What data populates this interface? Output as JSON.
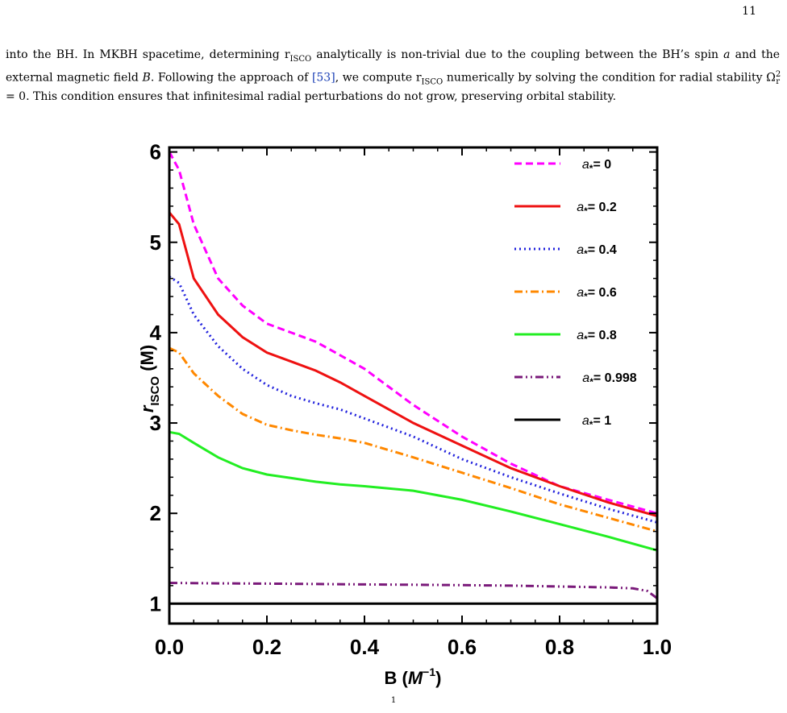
{
  "page_number": "11",
  "paragraph": [
    "into the BH. In MKBH spacetime, determining r",
    "ISCO",
    " analytically is non-trivial due to the coupling between the BH’s spin ",
    "a",
    " and the external magnetic field ",
    "B",
    ". Following the approach of ",
    "[53]",
    ", we compute r",
    "ISCO",
    " numerically by solving the condition for radial stability Ω",
    "2",
    "r",
    " = 0. This condition ensures that infinitesimal radial perturbations do not grow, preserving orbital stability."
  ],
  "caption_fragment": "1",
  "chart_data": {
    "type": "line",
    "xlabel_main": "B (",
    "xlabel_unit": "M",
    "xlabel_exp": "−1",
    "xlabel_close": ")",
    "ylabel_main": "r",
    "ylabel_sub": "ISCO",
    "ylabel_unit": " (M)",
    "xlim": [
      0,
      1
    ],
    "ylim": [
      0.78,
      6.05
    ],
    "xticks": [
      "0.0",
      "0.2",
      "0.4",
      "0.6",
      "0.8",
      "1.0"
    ],
    "yticks": [
      "1",
      "2",
      "3",
      "4",
      "5",
      "6"
    ],
    "legend_position": "top-right",
    "legend_symbol": "a",
    "legend_sub": "*",
    "series": [
      {
        "name": "0",
        "color": "#ff00ff",
        "dash": "dashed",
        "x": [
          0,
          0.02,
          0.05,
          0.1,
          0.15,
          0.2,
          0.25,
          0.3,
          0.35,
          0.4,
          0.5,
          0.6,
          0.7,
          0.8,
          0.9,
          1.0
        ],
        "y": [
          6.0,
          5.8,
          5.2,
          4.6,
          4.3,
          4.1,
          4.0,
          3.9,
          3.75,
          3.6,
          3.2,
          2.85,
          2.55,
          2.3,
          2.15,
          2.0
        ]
      },
      {
        "name": "0.2",
        "color": "#ee1111",
        "dash": "solid",
        "x": [
          0,
          0.02,
          0.05,
          0.1,
          0.15,
          0.2,
          0.25,
          0.3,
          0.35,
          0.4,
          0.5,
          0.6,
          0.7,
          0.8,
          0.9,
          1.0
        ],
        "y": [
          5.33,
          5.2,
          4.6,
          4.2,
          3.95,
          3.78,
          3.68,
          3.58,
          3.45,
          3.3,
          3.0,
          2.75,
          2.5,
          2.3,
          2.12,
          1.97
        ]
      },
      {
        "name": "0.4",
        "color": "#2222dd",
        "dash": "dotted",
        "x": [
          0,
          0.02,
          0.05,
          0.1,
          0.15,
          0.2,
          0.25,
          0.3,
          0.35,
          0.4,
          0.5,
          0.6,
          0.7,
          0.8,
          0.9,
          1.0
        ],
        "y": [
          4.62,
          4.55,
          4.2,
          3.85,
          3.6,
          3.42,
          3.3,
          3.22,
          3.15,
          3.05,
          2.85,
          2.6,
          2.4,
          2.22,
          2.05,
          1.9
        ]
      },
      {
        "name": "0.6",
        "color": "#ff8800",
        "dash": "dashdot",
        "x": [
          0,
          0.02,
          0.05,
          0.1,
          0.15,
          0.2,
          0.25,
          0.3,
          0.35,
          0.4,
          0.5,
          0.6,
          0.7,
          0.8,
          0.9,
          1.0
        ],
        "y": [
          3.83,
          3.78,
          3.55,
          3.3,
          3.1,
          2.98,
          2.92,
          2.87,
          2.83,
          2.78,
          2.62,
          2.45,
          2.28,
          2.1,
          1.95,
          1.8
        ]
      },
      {
        "name": "0.8",
        "color": "#22ee22",
        "dash": "solid",
        "x": [
          0,
          0.02,
          0.05,
          0.1,
          0.15,
          0.2,
          0.25,
          0.3,
          0.35,
          0.4,
          0.5,
          0.6,
          0.7,
          0.8,
          0.9,
          1.0
        ],
        "y": [
          2.9,
          2.88,
          2.78,
          2.62,
          2.5,
          2.43,
          2.39,
          2.35,
          2.32,
          2.3,
          2.25,
          2.15,
          2.02,
          1.88,
          1.74,
          1.59
        ]
      },
      {
        "name": "0.998",
        "color": "#7a1a7a",
        "dash": "dashdotdot",
        "x": [
          0,
          0.1,
          0.2,
          0.3,
          0.4,
          0.5,
          0.6,
          0.7,
          0.8,
          0.9,
          0.95,
          0.98,
          1.0
        ],
        "y": [
          1.23,
          1.225,
          1.222,
          1.218,
          1.213,
          1.21,
          1.205,
          1.2,
          1.19,
          1.18,
          1.17,
          1.14,
          1.06
        ]
      },
      {
        "name": "1",
        "color": "#000000",
        "dash": "solid",
        "x": [
          0,
          1.0
        ],
        "y": [
          1.0,
          1.0
        ]
      }
    ]
  }
}
